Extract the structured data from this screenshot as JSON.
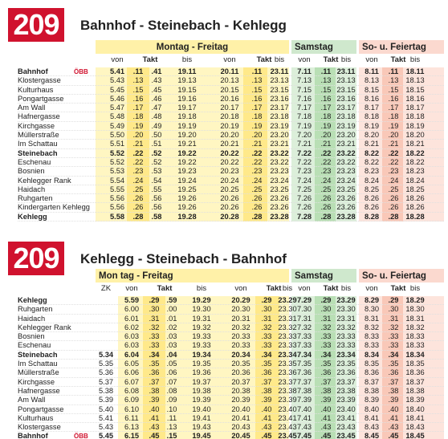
{
  "tables": [
    {
      "route": "209",
      "title": "Bahnhof - Steinebach - Kehlegg",
      "groups": {
        "weekday": "Montag - Freitag",
        "saturday": "Samstag",
        "sunday": "So- u. Feiertag"
      },
      "subheads": {
        "from": "von",
        "interval": "Takt",
        "until": "bis"
      },
      "rows": [
        {
          "stop": "Bahnhof",
          "bold": true,
          "obb": "ÖBB",
          "cells": [
            "5.41",
            ".11",
            ".41",
            "19.11",
            "20.11",
            ".11",
            "23.11",
            "7.11",
            ".11",
            "23.11",
            "8.11",
            ".11",
            "18.11"
          ]
        },
        {
          "stop": "Klostergasse",
          "cells": [
            "5.43",
            ".13",
            ".43",
            "19.13",
            "20.13",
            ".13",
            "23.13",
            "7.13",
            ".13",
            "23.13",
            "8.13",
            ".13",
            "18.13"
          ]
        },
        {
          "stop": "Kulturhaus",
          "cells": [
            "5.45",
            ".15",
            ".45",
            "19.15",
            "20.15",
            ".15",
            "23.15",
            "7.15",
            ".15",
            "23.15",
            "8.15",
            ".15",
            "18.15"
          ]
        },
        {
          "stop": "Pongartgasse",
          "cells": [
            "5.46",
            ".16",
            ".46",
            "19.16",
            "20.16",
            ".16",
            "23.16",
            "7.16",
            ".16",
            "23.16",
            "8.16",
            ".16",
            "18.16"
          ]
        },
        {
          "stop": "Am Wall",
          "cells": [
            "5.47",
            ".17",
            ".47",
            "19.17",
            "20.17",
            ".17",
            "23.17",
            "7.17",
            ".17",
            "23.17",
            "8.17",
            ".17",
            "18.17"
          ]
        },
        {
          "stop": "Hafnergasse",
          "cells": [
            "5.48",
            ".18",
            ".48",
            "19.18",
            "20.18",
            ".18",
            "23.18",
            "7.18",
            ".18",
            "23.18",
            "8.18",
            ".18",
            "18.18"
          ]
        },
        {
          "stop": "Kirchgasse",
          "cells": [
            "5.49",
            ".19",
            ".49",
            "19.19",
            "20.19",
            ".19",
            "23.19",
            "7.19",
            ".19",
            "23.19",
            "8.19",
            ".19",
            "18.19"
          ]
        },
        {
          "stop": "Müllerstraße",
          "cells": [
            "5.50",
            ".20",
            ".50",
            "19.20",
            "20.20",
            ".20",
            "23.20",
            "7.20",
            ".20",
            "23.20",
            "8.20",
            ".20",
            "18.20"
          ]
        },
        {
          "stop": "Im Schattau",
          "cells": [
            "5.51",
            ".21",
            ".51",
            "19.21",
            "20.21",
            ".21",
            "23.21",
            "7.21",
            ".21",
            "23.21",
            "8.21",
            ".21",
            "18.21"
          ]
        },
        {
          "stop": "Steinebach",
          "bold": true,
          "cells": [
            "5.52",
            ".22",
            ".52",
            "19.22",
            "20.22",
            ".22",
            "23.22",
            "7.22",
            ".22",
            "23.22",
            "8.22",
            ".22",
            "18.22"
          ]
        },
        {
          "stop": "Eschenau",
          "cells": [
            "5.52",
            ".22",
            ".52",
            "19.22",
            "20.22",
            ".22",
            "23.22",
            "7.22",
            ".22",
            "23.22",
            "8.22",
            ".22",
            "18.22"
          ]
        },
        {
          "stop": "Bosnien",
          "cells": [
            "5.53",
            ".23",
            ".53",
            "19.23",
            "20.23",
            ".23",
            "23.23",
            "7.23",
            ".23",
            "23.23",
            "8.23",
            ".23",
            "18.23"
          ]
        },
        {
          "stop": "Kehlegger Rank",
          "cells": [
            "5.54",
            ".24",
            ".54",
            "19.24",
            "20.24",
            ".24",
            "23.24",
            "7.24",
            ".24",
            "23.24",
            "8.24",
            ".24",
            "18.24"
          ]
        },
        {
          "stop": "Haidach",
          "cells": [
            "5.55",
            ".25",
            ".55",
            "19.25",
            "20.25",
            ".25",
            "23.25",
            "7.25",
            ".25",
            "23.25",
            "8.25",
            ".25",
            "18.25"
          ]
        },
        {
          "stop": "Ruhgarten",
          "cells": [
            "5.56",
            ".26",
            ".56",
            "19.26",
            "20.26",
            ".26",
            "23.26",
            "7.26",
            ".26",
            "23.26",
            "8.26",
            ".26",
            "18.26"
          ]
        },
        {
          "stop": "Kindergarten Kehlegg",
          "cells": [
            "5.56",
            ".26",
            ".56",
            "19.26",
            "20.26",
            ".26",
            "23.26",
            "7.26",
            ".26",
            "23.26",
            "8.26",
            ".26",
            "18.26"
          ]
        },
        {
          "stop": "Kehlegg",
          "bold": true,
          "cells": [
            "5.58",
            ".28",
            ".58",
            "19.28",
            "20.28",
            ".28",
            "23.28",
            "7.28",
            ".28",
            "23.28",
            "8.28",
            ".28",
            "18.28"
          ]
        }
      ]
    },
    {
      "route": "209",
      "title": "Kehlegg - Steinebach - Bahnhof",
      "groups": {
        "weekday": "Mon tag - Freitag",
        "saturday": "Samstag",
        "sunday": "So- u. Feiertag"
      },
      "subheads": {
        "zk": "ZK",
        "from": "von",
        "interval": "Takt",
        "until": "bis"
      },
      "rows": [
        {
          "stop": "Kehlegg",
          "bold": true,
          "cells": [
            "",
            "5.59",
            ".29",
            ".59",
            "19.29",
            "20.29",
            ".29",
            "23.29",
            "7.29",
            ".29",
            "23.29",
            "8.29",
            ".29",
            "18.29"
          ]
        },
        {
          "stop": "Ruhgarten",
          "cells": [
            "",
            "6.00",
            ".30",
            ".00",
            "19.30",
            "20.30",
            ".30",
            "23.30",
            "7.30",
            ".30",
            "23.30",
            "8.30",
            ".30",
            "18.30"
          ]
        },
        {
          "stop": "Haidach",
          "cells": [
            "",
            "6.01",
            ".31",
            ".01",
            "19.31",
            "20.31",
            ".31",
            "23.31",
            "7.31",
            ".31",
            "23.31",
            "8.31",
            ".31",
            "18.31"
          ]
        },
        {
          "stop": "Kehlegger Rank",
          "cells": [
            "",
            "6.02",
            ".32",
            ".02",
            "19.32",
            "20.32",
            ".32",
            "23.32",
            "7.32",
            ".32",
            "23.32",
            "8.32",
            ".32",
            "18.32"
          ]
        },
        {
          "stop": "Bosnien",
          "cells": [
            "",
            "6.03",
            ".33",
            ".03",
            "19.33",
            "20.33",
            ".33",
            "23.33",
            "7.33",
            ".33",
            "23.33",
            "8.33",
            ".33",
            "18.33"
          ]
        },
        {
          "stop": "Eschenau",
          "cells": [
            "",
            "6.03",
            ".33",
            ".03",
            "19.33",
            "20.33",
            ".33",
            "23.33",
            "7.33",
            ".33",
            "23.33",
            "8.33",
            ".33",
            "18.33"
          ]
        },
        {
          "stop": "Steinebach",
          "bold": true,
          "cells": [
            "5.34",
            "6.04",
            ".34",
            ".04",
            "19.34",
            "20.34",
            ".34",
            "23.34",
            "7.34",
            ".34",
            "23.34",
            "8.34",
            ".34",
            "18.34"
          ]
        },
        {
          "stop": "Im Schattau",
          "cells": [
            "5.35",
            "6.05",
            ".35",
            ".05",
            "19.35",
            "20.35",
            ".35",
            "23.35",
            "7.35",
            ".35",
            "23.35",
            "8.35",
            ".35",
            "18.35"
          ]
        },
        {
          "stop": "Müllerstraße",
          "cells": [
            "5.36",
            "6.06",
            ".36",
            ".06",
            "19.36",
            "20.36",
            ".36",
            "23.36",
            "7.36",
            ".36",
            "23.36",
            "8.36",
            ".36",
            "18.36"
          ]
        },
        {
          "stop": "Kirchgasse",
          "cells": [
            "5.37",
            "6.07",
            ".37",
            ".07",
            "19.37",
            "20.37",
            ".37",
            "23.37",
            "7.37",
            ".37",
            "23.37",
            "8.37",
            ".37",
            "18.37"
          ]
        },
        {
          "stop": "Hafnergasse",
          "cells": [
            "5.38",
            "6.08",
            ".38",
            ".08",
            "19.38",
            "20.38",
            ".38",
            "23.38",
            "7.38",
            ".38",
            "23.38",
            "8.38",
            ".38",
            "18.38"
          ]
        },
        {
          "stop": "Am Wall",
          "cells": [
            "5.39",
            "6.09",
            ".39",
            ".09",
            "19.39",
            "20.39",
            ".39",
            "23.39",
            "7.39",
            ".39",
            "23.39",
            "8.39",
            ".39",
            "18.39"
          ]
        },
        {
          "stop": "Pongartgasse",
          "cells": [
            "5.40",
            "6.10",
            ".40",
            ".10",
            "19.40",
            "20.40",
            ".40",
            "23.40",
            "7.40",
            ".40",
            "23.40",
            "8.40",
            ".40",
            "18.40"
          ]
        },
        {
          "stop": "Kulturhaus",
          "cells": [
            "5.41",
            "6.11",
            ".41",
            ".11",
            "19.41",
            "20.41",
            ".41",
            "23.41",
            "7.41",
            ".41",
            "23.41",
            "8.41",
            ".41",
            "18.41"
          ]
        },
        {
          "stop": "Klostergasse",
          "cells": [
            "5.43",
            "6.13",
            ".43",
            ".13",
            "19.43",
            "20.43",
            ".43",
            "23.43",
            "7.43",
            ".43",
            "23.43",
            "8.43",
            ".43",
            "18.43"
          ]
        },
        {
          "stop": "Bahnhof",
          "bold": true,
          "obb": "ÖBB",
          "cells": [
            "5.45",
            "6.15",
            ".45",
            ".15",
            "19.45",
            "20.45",
            ".45",
            "23.45",
            "7.45",
            ".45",
            "23.45",
            "8.45",
            ".45",
            "18.45"
          ]
        }
      ]
    }
  ],
  "colors": {
    "brand_red": "#d0122e",
    "weekday": "#fff1a8",
    "saturday": "#cfe8cd",
    "sunday": "#fbd9cf"
  }
}
